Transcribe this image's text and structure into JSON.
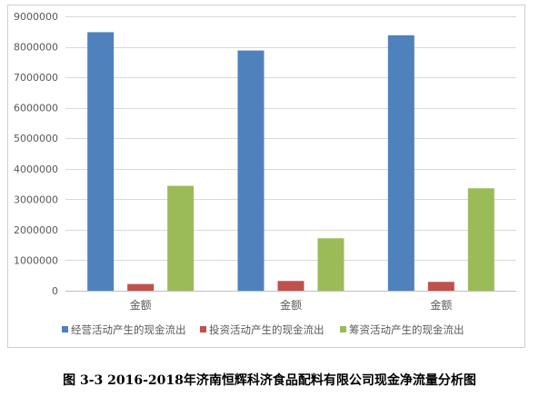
{
  "chart_data": {
    "type": "bar",
    "categories": [
      "金额",
      "金额",
      "金额"
    ],
    "series": [
      {
        "name": "经营活动产生的现金流出",
        "color": "#4f81bd",
        "values": [
          8480000,
          7880000,
          8380000
        ]
      },
      {
        "name": "投资活动产生的现金流出",
        "color": "#c0504d",
        "values": [
          220000,
          320000,
          290000
        ]
      },
      {
        "name": "筹资活动产生的现金流出",
        "color": "#9bbb59",
        "values": [
          3440000,
          1720000,
          3360000
        ]
      }
    ],
    "ylim": [
      0,
      9000000
    ],
    "yticks": [
      0,
      1000000,
      2000000,
      3000000,
      4000000,
      5000000,
      6000000,
      7000000,
      8000000,
      9000000
    ],
    "grid": true,
    "legend_position": "bottom",
    "caption": "图 3-3  2016-2018年济南恒辉科济食品配料有限公司现金净流量分析图"
  }
}
